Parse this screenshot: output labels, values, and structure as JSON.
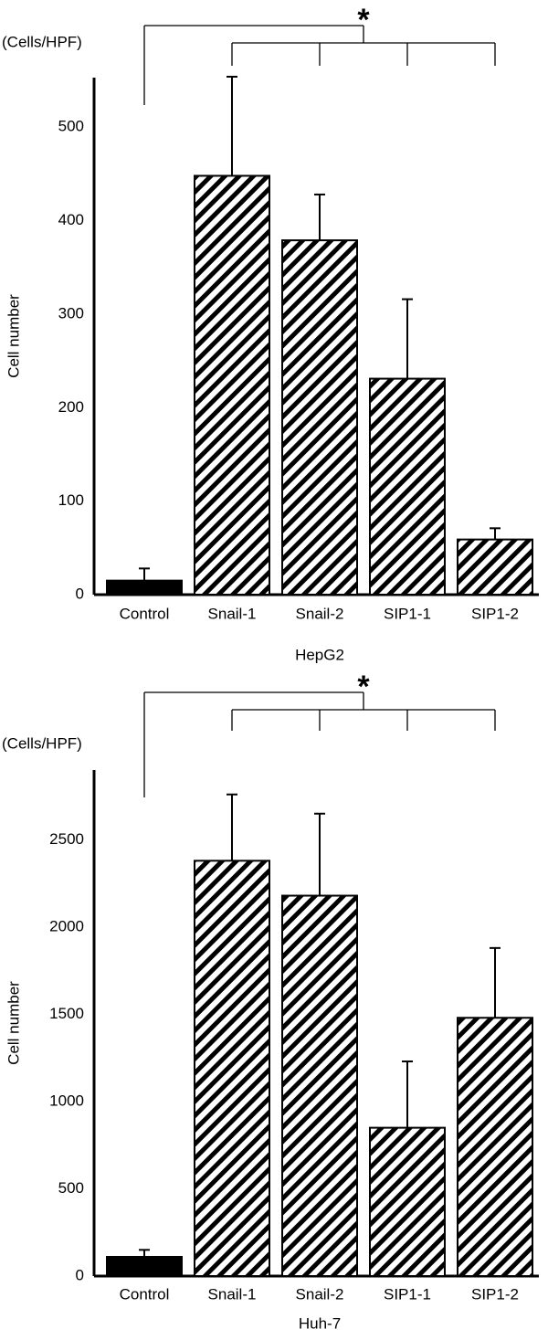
{
  "chart_data": [
    {
      "type": "bar",
      "y_unit": "(Cells/HPF)",
      "ylabel": "Cell number",
      "xlabel": "HepG2",
      "annotation": "*",
      "categories": [
        "Control",
        "Snail-1",
        "Snail-2",
        "SIP1-1",
        "SIP1-2"
      ],
      "values": [
        15,
        448,
        379,
        231,
        59
      ],
      "errors": [
        13,
        106,
        49,
        85,
        12
      ],
      "fills": [
        "solid",
        "hatched",
        "hatched",
        "hatched",
        "hatched"
      ],
      "color": "#000000",
      "ylim": [
        0,
        553
      ],
      "yticks": [
        0,
        100,
        200,
        300,
        400,
        500
      ]
    },
    {
      "type": "bar",
      "y_unit": "(Cells/HPF)",
      "ylabel": "Cell number",
      "xlabel": "Huh-7",
      "annotation": "*",
      "categories": [
        "Control",
        "Snail-1",
        "Snail-2",
        "SIP1-1",
        "SIP1-2"
      ],
      "values": [
        110,
        2380,
        2180,
        850,
        1480
      ],
      "errors": [
        40,
        380,
        470,
        380,
        400
      ],
      "fills": [
        "solid",
        "hatched",
        "hatched",
        "hatched",
        "hatched"
      ],
      "color": "#000000",
      "ylim": [
        0,
        2900
      ],
      "yticks": [
        0,
        500,
        1000,
        1500,
        2000,
        2500
      ]
    }
  ]
}
